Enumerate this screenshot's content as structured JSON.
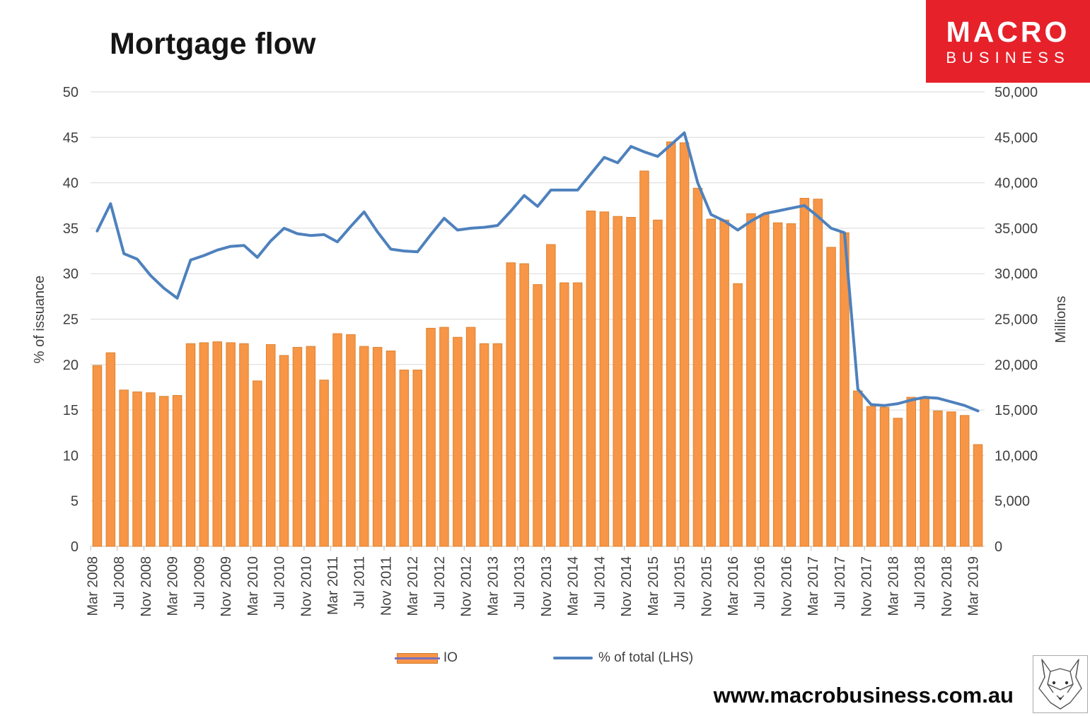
{
  "title": "Mortgage flow",
  "logo": {
    "line1": "MACRO",
    "line2": "BUSINESS",
    "bg_color": "#E6212A",
    "text_color": "#FFFFFF"
  },
  "footer": {
    "url": "www.macrobusiness.com.au"
  },
  "legend": [
    {
      "label": "IO",
      "type": "bar",
      "color": "#F79646"
    },
    {
      "label": "% of total (LHS)",
      "type": "line",
      "color": "#4E81BD"
    }
  ],
  "chart_data": {
    "type": "combo",
    "title": "Mortgage flow",
    "grid": true,
    "legend_position": "bottom",
    "grid_color": "#D9D9D9",
    "baseline_color": "#BFBFBF",
    "axis_text_color": "#404040",
    "left_axis": {
      "title": "% of issuance",
      "min": 0,
      "max": 50,
      "tick": 5,
      "tick_labels": [
        "0",
        "5",
        "10",
        "15",
        "20",
        "25",
        "30",
        "35",
        "40",
        "45",
        "50"
      ]
    },
    "right_axis": {
      "title": "Millions",
      "min": 0,
      "max": 50000,
      "tick": 5000,
      "tick_labels": [
        "0",
        "5,000",
        "10,000",
        "15,000",
        "20,000",
        "25,000",
        "30,000",
        "35,000",
        "40,000",
        "45,000",
        "50,000"
      ]
    },
    "label_every": 2,
    "x_tick_labels": [
      "Mar 2008",
      "Jul 2008",
      "Nov 2008",
      "Mar 2009",
      "Jul 2009",
      "Nov 2009",
      "Mar 2010",
      "Jul 2010",
      "Nov 2010",
      "Mar 2011",
      "Jul 2011",
      "Nov 2011",
      "Mar 2012",
      "Jul 2012",
      "Nov 2012",
      "Mar 2013",
      "Jul 2013",
      "Nov 2013",
      "Mar 2014",
      "Jul 2014",
      "Nov 2014",
      "Mar 2015",
      "Jul 2015",
      "Nov 2015",
      "Mar 2016",
      "Jul 2016",
      "Nov 2016",
      "Mar 2017",
      "Jul 2017",
      "Nov 2017",
      "Mar 2018",
      "Jul 2018",
      "Nov 2018",
      "Mar 2019"
    ],
    "categories": [
      "Mar 2008",
      "May 2008",
      "Jul 2008",
      "Sep 2008",
      "Nov 2008",
      "Jan 2009",
      "Mar 2009",
      "May 2009",
      "Jul 2009",
      "Sep 2009",
      "Nov 2009",
      "Jan 2010",
      "Mar 2010",
      "May 2010",
      "Jul 2010",
      "Sep 2010",
      "Nov 2010",
      "Jan 2011",
      "Mar 2011",
      "May 2011",
      "Jul 2011",
      "Sep 2011",
      "Nov 2011",
      "Jan 2012",
      "Mar 2012",
      "May 2012",
      "Jul 2012",
      "Sep 2012",
      "Nov 2012",
      "Jan 2013",
      "Mar 2013",
      "May 2013",
      "Jul 2013",
      "Sep 2013",
      "Nov 2013",
      "Jan 2014",
      "Mar 2014",
      "May 2014",
      "Jul 2014",
      "Sep 2014",
      "Nov 2014",
      "Jan 2015",
      "Mar 2015",
      "May 2015",
      "Jul 2015",
      "Sep 2015",
      "Nov 2015",
      "Jan 2016",
      "Mar 2016",
      "May 2016",
      "Jul 2016",
      "Sep 2016",
      "Nov 2016",
      "Jan 2017",
      "Mar 2017",
      "May 2017",
      "Jul 2017",
      "Sep 2017",
      "Nov 2017",
      "Jan 2018",
      "Mar 2018",
      "May 2018",
      "Jul 2018",
      "Sep 2018",
      "Nov 2018",
      "Jan 2019",
      "Mar 2019"
    ],
    "series": [
      {
        "name": "IO",
        "type": "bar",
        "axis": "right",
        "color": "#F79646",
        "border_color": "#DD8230",
        "values": [
          19900,
          21300,
          17200,
          17000,
          16900,
          16500,
          16600,
          22300,
          22400,
          22500,
          22400,
          22300,
          18200,
          22200,
          21000,
          21900,
          22000,
          18300,
          23400,
          23300,
          22000,
          21900,
          21500,
          19400,
          19400,
          24000,
          24100,
          23000,
          24100,
          22300,
          22300,
          31200,
          31100,
          28800,
          33200,
          29000,
          29000,
          36900,
          36800,
          36300,
          36200,
          41300,
          35900,
          44500,
          44400,
          39400,
          36000,
          35900,
          28900,
          36600,
          36500,
          35600,
          35500,
          38300,
          38200,
          32900,
          34500,
          17100,
          15400,
          15300,
          14100,
          16400,
          16300,
          14900,
          14800,
          14400,
          11200
        ]
      },
      {
        "name": "% of total (LHS)",
        "type": "line",
        "axis": "left",
        "color": "#4E81BD",
        "values": [
          34.7,
          37.7,
          32.2,
          31.6,
          29.8,
          28.4,
          27.3,
          31.5,
          32.0,
          32.6,
          33.0,
          33.1,
          31.8,
          33.6,
          35.0,
          34.4,
          34.2,
          34.3,
          33.5,
          35.2,
          36.8,
          34.6,
          32.7,
          32.5,
          32.4,
          34.3,
          36.1,
          34.8,
          35.0,
          35.1,
          35.3,
          36.9,
          38.6,
          37.4,
          39.2,
          39.2,
          39.2,
          41.0,
          42.8,
          42.2,
          44.0,
          43.4,
          42.9,
          44.2,
          45.5,
          40.0,
          36.5,
          35.8,
          34.8,
          35.8,
          36.6,
          36.9,
          37.2,
          37.5,
          36.3,
          35.0,
          34.5,
          17.3,
          15.6,
          15.5,
          15.7,
          16.1,
          16.4,
          16.3,
          15.9,
          15.5,
          14.9
        ]
      }
    ]
  }
}
